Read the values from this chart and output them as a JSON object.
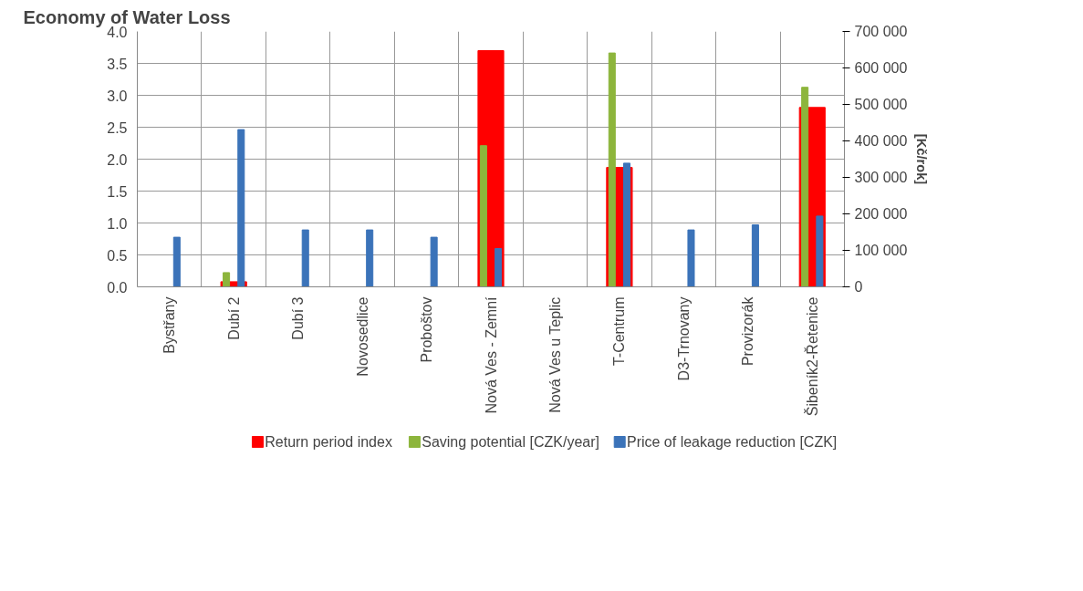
{
  "chart_data": {
    "type": "bar",
    "title": "Economy of Water Loss",
    "y2label": "[Kč/rok]",
    "categories": [
      "Bystřany",
      "Dubí 2",
      "Dubí 3",
      "Novosedlice",
      "Proboštov",
      "Nová Ves - Zemní",
      "Nová Ves u Teplic",
      "T-Centrum",
      "D3-Trnovany",
      "Provizorák",
      "Šibeník2-Řetenice"
    ],
    "series": [
      {
        "name": "Return period index",
        "color": "#ff0000",
        "values": [
          null,
          0.08,
          null,
          null,
          null,
          3.7,
          null,
          1.87,
          null,
          null,
          2.81
        ]
      },
      {
        "name": "Saving potential [CZK/year]",
        "color": "#8db53c",
        "axis": "y2",
        "values": [
          null,
          39000,
          null,
          null,
          null,
          387000,
          null,
          641000,
          null,
          null,
          547000
        ]
      },
      {
        "name": "Price of leakage reduction [CZK]",
        "color": "#3b73b9",
        "axis": "y2",
        "values": [
          136000,
          431000,
          156000,
          156000,
          136000,
          105000,
          null,
          339000,
          156000,
          170000,
          194000
        ]
      }
    ],
    "ylim": [
      0,
      4
    ],
    "yticks": [
      {
        "value": 0,
        "label": "0.0"
      },
      {
        "value": 0.5,
        "label": "0.5"
      },
      {
        "value": 1,
        "label": "1.0"
      },
      {
        "value": 1.5,
        "label": "1.5"
      },
      {
        "value": 2,
        "label": "2.0"
      },
      {
        "value": 2.5,
        "label": "2.5"
      },
      {
        "value": 3,
        "label": "3.0"
      },
      {
        "value": 3.5,
        "label": "3.5"
      },
      {
        "value": 4,
        "label": "4.0"
      }
    ],
    "y2lim": [
      0,
      700000
    ],
    "y2ticks": [
      0,
      {
        "value": 100000,
        "label": "100 000"
      },
      {
        "value": 200000,
        "label": "200 000"
      },
      {
        "value": 300000,
        "label": "300 000"
      },
      {
        "value": 400000,
        "label": "400 000"
      },
      {
        "value": 500000,
        "label": "500 000"
      },
      {
        "value": 600000,
        "label": "600 000"
      },
      {
        "value": 700000,
        "label": "700 000"
      }
    ],
    "grid": true,
    "legend": "bottom"
  }
}
